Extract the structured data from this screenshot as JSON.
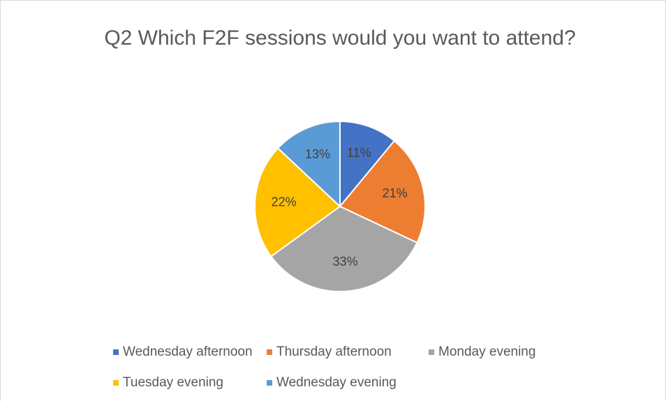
{
  "chart_data": {
    "type": "pie",
    "title": "Q2 Which F2F sessions would you want to attend?",
    "categories": [
      "Wednesday afternoon",
      "Thursday afternoon",
      "Monday evening",
      "Tuesday evening",
      "Wednesday evening"
    ],
    "values": [
      11,
      21,
      33,
      22,
      13
    ],
    "value_labels": [
      "11%",
      "21%",
      "33%",
      "22%",
      "13%"
    ],
    "colors": [
      "#4472c4",
      "#ed7d31",
      "#a5a5a5",
      "#ffc000",
      "#5b9bd5"
    ],
    "legend": "bottom"
  }
}
